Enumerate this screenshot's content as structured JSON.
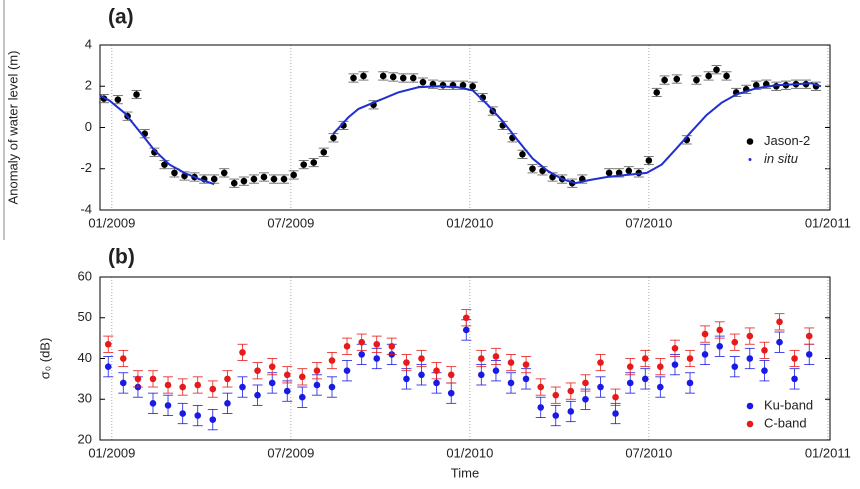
{
  "chart_data": [
    {
      "type": "scatter",
      "title": "(a)",
      "ylabel": "Anomaly of water level (m)",
      "xlim": [
        2008.967,
        2011.006
      ],
      "xticks": [
        {
          "value": 2009,
          "label": "01/2009"
        },
        {
          "value": 2009.5,
          "label": "07/2009"
        },
        {
          "value": 2010,
          "label": "01/2010"
        },
        {
          "value": 2010.5,
          "label": "07/2010"
        },
        {
          "value": 2011,
          "label": "01/2011"
        }
      ],
      "ylim": [
        -4,
        4
      ],
      "yticks": [
        -4,
        -2,
        0,
        2,
        4
      ],
      "grid": "x",
      "legend": "right",
      "series": [
        {
          "name": "Jason-2",
          "color": "#000000",
          "mode": "markers",
          "error": 0.2,
          "x": [
            2008.978,
            2009.017,
            2009.044,
            2009.069,
            2009.092,
            2009.119,
            2009.147,
            2009.175,
            2009.203,
            2009.231,
            2009.258,
            2009.286,
            2009.314,
            2009.342,
            2009.369,
            2009.397,
            2009.425,
            2009.453,
            2009.481,
            2009.508,
            2009.536,
            2009.564,
            2009.592,
            2009.619,
            2009.647,
            2009.675,
            2009.703,
            2009.731,
            2009.758,
            2009.786,
            2009.814,
            2009.842,
            2009.869,
            2009.897,
            2009.925,
            2009.953,
            2009.981,
            2010.008,
            2010.036,
            2010.064,
            2010.092,
            2010.119,
            2010.147,
            2010.175,
            2010.203,
            2010.231,
            2010.258,
            2010.286,
            2010.314,
            2010.389,
            2010.417,
            2010.444,
            2010.472,
            2010.5,
            2010.522,
            2010.544,
            2010.578,
            2010.606,
            2010.633,
            2010.667,
            2010.689,
            2010.717,
            2010.744,
            2010.772,
            2010.8,
            2010.828,
            2010.856,
            2010.883,
            2010.911,
            2010.939,
            2010.967
          ],
          "values": [
            1.4,
            1.35,
            0.55,
            1.6,
            -0.3,
            -1.2,
            -1.8,
            -2.2,
            -2.35,
            -2.4,
            -2.5,
            -2.5,
            -2.2,
            -2.7,
            -2.6,
            -2.5,
            -2.4,
            -2.5,
            -2.5,
            -2.3,
            -1.8,
            -1.7,
            -1.2,
            -0.5,
            0.1,
            2.4,
            2.5,
            1.1,
            2.5,
            2.45,
            2.4,
            2.4,
            2.2,
            2.1,
            2.05,
            2.05,
            2.05,
            2.0,
            1.45,
            0.8,
            0.1,
            -0.5,
            -1.3,
            -2.0,
            -2.1,
            -2.4,
            -2.5,
            -2.7,
            -2.5,
            -2.2,
            -2.2,
            -2.1,
            -2.2,
            -1.6,
            1.7,
            2.3,
            2.35,
            -0.6,
            2.3,
            2.5,
            2.8,
            2.5,
            1.7,
            1.85,
            2.05,
            2.1,
            2.0,
            2.05,
            2.1,
            2.1,
            2.0
          ]
        },
        {
          "name": "in situ",
          "color": "#1f2fd0",
          "mode": "line",
          "label_style": "italic",
          "x": [
            2008.967,
            2008.994,
            2009.036,
            2009.078,
            2009.119,
            2009.161,
            2009.203,
            2009.244,
            2009.286,
            2009.4,
            2009.619,
            2009.661,
            2009.689,
            2009.744,
            2009.8,
            2009.856,
            2009.911,
            2009.967,
            2010.008,
            2010.05,
            2010.092,
            2010.133,
            2010.175,
            2010.217,
            2010.258,
            2010.294,
            2010.333,
            2010.383,
            2010.439,
            2010.494,
            2010.536,
            2010.578,
            2010.619,
            2010.661,
            2010.703,
            2010.744,
            2010.8,
            2010.856,
            2010.911,
            2010.953,
            2010.981
          ],
          "values": [
            1.55,
            1.3,
            0.7,
            -0.2,
            -1.1,
            -1.8,
            -2.2,
            -2.5,
            -2.75,
            null,
            -0.3,
            0.5,
            0.9,
            1.3,
            1.7,
            1.95,
            2.0,
            1.95,
            1.8,
            1.1,
            0.3,
            -0.6,
            -1.5,
            -2.1,
            -2.5,
            -2.7,
            -2.55,
            -2.4,
            -2.3,
            -2.2,
            -1.8,
            -1.0,
            -0.2,
            0.6,
            1.2,
            1.6,
            1.9,
            2.05,
            2.1,
            2.15,
            2.0
          ]
        }
      ]
    },
    {
      "type": "scatter",
      "title": "(b)",
      "ylabel": "σ₀ (dB)",
      "xlabel": "Time",
      "xlim": [
        2008.967,
        2011.006
      ],
      "xticks": [
        {
          "value": 2009,
          "label": "01/2009"
        },
        {
          "value": 2009.5,
          "label": "07/2009"
        },
        {
          "value": 2010,
          "label": "01/2010"
        },
        {
          "value": 2010.5,
          "label": "07/2010"
        },
        {
          "value": 2011,
          "label": "01/2011"
        }
      ],
      "ylim": [
        20,
        60
      ],
      "yticks": [
        20,
        30,
        40,
        50,
        60
      ],
      "grid": "x",
      "legend": "lower right",
      "x": [
        2008.99,
        2009.032,
        2009.073,
        2009.115,
        2009.157,
        2009.198,
        2009.24,
        2009.282,
        2009.323,
        2009.365,
        2009.407,
        2009.448,
        2009.49,
        2009.532,
        2009.573,
        2009.615,
        2009.657,
        2009.698,
        2009.74,
        2009.782,
        2009.823,
        2009.865,
        2009.907,
        2009.948,
        2009.99,
        2010.032,
        2010.073,
        2010.115,
        2010.157,
        2010.198,
        2010.24,
        2010.282,
        2010.323,
        2010.365,
        2010.407,
        2010.448,
        2010.49,
        2010.532,
        2010.573,
        2010.615,
        2010.657,
        2010.698,
        2010.74,
        2010.782,
        2010.823,
        2010.865,
        2010.907,
        2010.948
      ],
      "series": [
        {
          "name": "Ku-band",
          "color": "#1a1ae6",
          "mode": "markers",
          "error": 2.5,
          "values": [
            38,
            34,
            33,
            29,
            28.5,
            26.5,
            26,
            25,
            29,
            33,
            31,
            34,
            32,
            30.5,
            33.5,
            33,
            37,
            41,
            40,
            41,
            35,
            36,
            34,
            31.5,
            47,
            36,
            37,
            34,
            35,
            28,
            26,
            27,
            30,
            33,
            26.5,
            34,
            35,
            33,
            38.5,
            34,
            41,
            43,
            38,
            40,
            37,
            44,
            35,
            41
          ]
        },
        {
          "name": "C-band",
          "color": "#e61a1a",
          "mode": "markers",
          "error": 2,
          "values": [
            43.5,
            40,
            35,
            35,
            33.5,
            33,
            33.5,
            32.5,
            35,
            41.5,
            37,
            38,
            36,
            35.5,
            37,
            39.5,
            43,
            44,
            43.5,
            43,
            39,
            40,
            37,
            36,
            50,
            40,
            40.5,
            39,
            38.5,
            33,
            31,
            32,
            34,
            39,
            30.5,
            38,
            40,
            38,
            42.5,
            40,
            46,
            47,
            44,
            45.5,
            42,
            49,
            40,
            45.5
          ]
        }
      ]
    }
  ]
}
